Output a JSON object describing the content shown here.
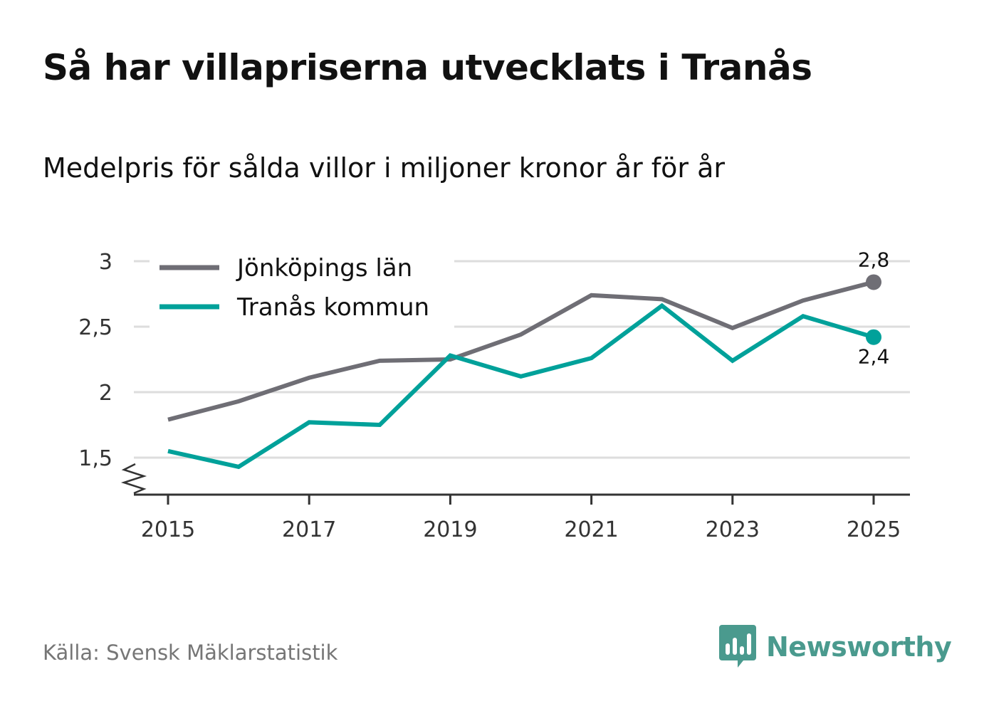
{
  "title": "Så har villapriserna utvecklats i Tranås",
  "subtitle": "Medelpris för sålda villor i miljoner kronor år för år",
  "source": "Källa: Svensk Mäklarstatistik",
  "brand": "Newsworthy",
  "colors": {
    "jonkoping": "#6f6e75",
    "tranas": "#00a19a",
    "grid": "#dddddd",
    "axis": "#333333",
    "brand": "#4a9a8e"
  },
  "chart_data": {
    "type": "line",
    "title": "Så har villapriserna utvecklats i Tranås",
    "subtitle": "Medelpris för sålda villor i miljoner kronor år för år",
    "xlabel": "",
    "ylabel": "",
    "x": [
      2015,
      2016,
      2017,
      2018,
      2019,
      2020,
      2021,
      2022,
      2023,
      2024,
      2025
    ],
    "x_tick_labels": [
      "2015",
      "2017",
      "2019",
      "2021",
      "2023",
      "2025"
    ],
    "x_tick_values": [
      2015,
      2017,
      2019,
      2021,
      2023,
      2025
    ],
    "y_tick_labels": [
      "1,5",
      "2",
      "2,5",
      "3"
    ],
    "y_tick_values": [
      1.5,
      2,
      2.5,
      3
    ],
    "ylim": [
      1.3,
      3.0
    ],
    "axis_break": true,
    "grid": true,
    "legend_position": "top-left",
    "series": [
      {
        "name": "Jönköpings län",
        "color": "#6f6e75",
        "values": [
          1.79,
          1.93,
          2.11,
          2.24,
          2.25,
          2.44,
          2.74,
          2.71,
          2.49,
          2.7,
          2.84
        ],
        "end_label": "2,8"
      },
      {
        "name": "Tranås kommun",
        "color": "#00a19a",
        "values": [
          1.55,
          1.43,
          1.77,
          1.75,
          2.28,
          2.12,
          2.26,
          2.66,
          2.24,
          2.58,
          2.42
        ],
        "end_label": "2,4"
      }
    ]
  }
}
